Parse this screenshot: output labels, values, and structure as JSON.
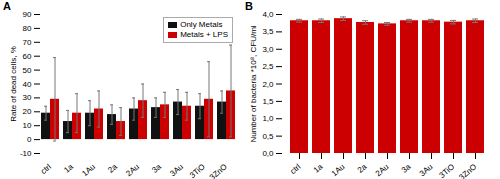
{
  "chart_data": [
    {
      "type": "bar",
      "title": "A",
      "categories": [
        "ctrl",
        "1a",
        "1Au",
        "2a",
        "2Au",
        "3a",
        "3Au",
        "3TiO",
        "3ZnO"
      ],
      "series": [
        {
          "name": "Only Metals",
          "color": "#111111",
          "values": [
            19,
            13,
            19,
            18,
            22,
            23,
            27,
            24,
            27
          ],
          "errors": [
            5,
            8,
            9,
            7,
            8,
            7,
            9,
            9,
            8
          ]
        },
        {
          "name": "Metals + LPS",
          "color": "#cc0000",
          "values": [
            29,
            19,
            22,
            13,
            28,
            25,
            24,
            29,
            35
          ],
          "errors": [
            30,
            14,
            13,
            10,
            12,
            9,
            10,
            27,
            33
          ]
        }
      ],
      "ylabel": "Rate of dead cells, %",
      "ylim": [
        -10,
        90
      ],
      "yticks": [
        -10,
        0,
        10,
        20,
        30,
        40,
        50,
        60,
        70,
        80,
        90
      ],
      "legend": "upper right",
      "grid": false
    },
    {
      "type": "bar",
      "title": "B",
      "categories": [
        "ctrl",
        "1a",
        "1Au",
        "2a",
        "2Au",
        "3a",
        "3Au",
        "3TiO",
        "3ZnO"
      ],
      "values": [
        3.82,
        3.82,
        3.88,
        3.77,
        3.73,
        3.82,
        3.82,
        3.78,
        3.82
      ],
      "errors": [
        0.04,
        0.05,
        0.05,
        0.05,
        0.04,
        0.04,
        0.04,
        0.05,
        0.05
      ],
      "color": "#cc0000",
      "ylabel": "Number of bacteria *10⁸, CFU/ml",
      "ylim": [
        0,
        4.0
      ],
      "yticks": [
        {
          "value": 0.0,
          "label": "0,0"
        },
        {
          "value": 0.5,
          "label": "0,5"
        },
        {
          "value": 1.0,
          "label": "1,0"
        },
        {
          "value": 1.5,
          "label": "1,5"
        },
        {
          "value": 2.0,
          "label": "2,0"
        },
        {
          "value": 2.5,
          "label": "2,5"
        },
        {
          "value": 3.0,
          "label": "3,0"
        },
        {
          "value": 3.5,
          "label": "3,5"
        },
        {
          "value": 4.0,
          "label": "4,0"
        }
      ],
      "grid": false
    }
  ]
}
